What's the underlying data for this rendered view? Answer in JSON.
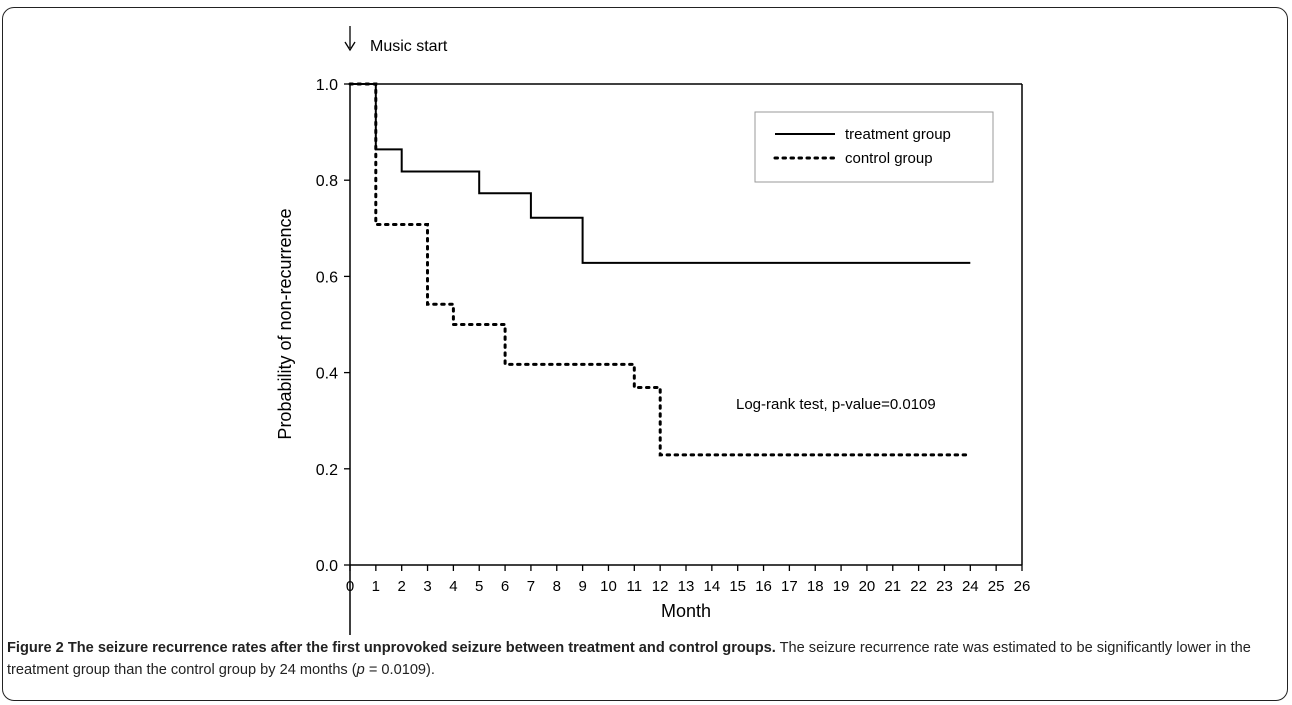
{
  "chart_data": {
    "type": "line",
    "step": true,
    "xlabel": "Month",
    "ylabel": "Probability of non-recurrence",
    "xlim": [
      0,
      26
    ],
    "ylim": [
      0,
      1.0
    ],
    "xticks": [
      "0",
      "1",
      "2",
      "3",
      "4",
      "5",
      "6",
      "7",
      "8",
      "9",
      "10",
      "11",
      "12",
      "13",
      "14",
      "15",
      "16",
      "17",
      "18",
      "19",
      "20",
      "21",
      "22",
      "23",
      "24",
      "25",
      "26"
    ],
    "yticks": [
      "0.0",
      "0.2",
      "0.4",
      "0.6",
      "0.8",
      "1.0"
    ],
    "grid": false,
    "legend_position": "top-right",
    "series": [
      {
        "name": "treatment group",
        "style": "solid",
        "points": [
          [
            0,
            1.0
          ],
          [
            1,
            1.0
          ],
          [
            1,
            0.864
          ],
          [
            2,
            0.864
          ],
          [
            2,
            0.818
          ],
          [
            5,
            0.818
          ],
          [
            5,
            0.773
          ],
          [
            7,
            0.773
          ],
          [
            7,
            0.722
          ],
          [
            9,
            0.722
          ],
          [
            9,
            0.628
          ],
          [
            24,
            0.628
          ]
        ]
      },
      {
        "name": "control group",
        "style": "dotted",
        "points": [
          [
            0,
            1.0
          ],
          [
            1,
            1.0
          ],
          [
            1,
            0.708
          ],
          [
            3,
            0.708
          ],
          [
            3,
            0.542
          ],
          [
            4,
            0.542
          ],
          [
            4,
            0.5
          ],
          [
            6,
            0.5
          ],
          [
            6,
            0.417
          ],
          [
            11,
            0.417
          ],
          [
            11,
            0.369
          ],
          [
            12,
            0.369
          ],
          [
            12,
            0.229
          ],
          [
            24,
            0.229
          ]
        ]
      }
    ],
    "annotations": [
      {
        "text": "Music start",
        "x": 1
      },
      {
        "text": "Log-rank test, p-value=0.0109"
      }
    ]
  },
  "caption": {
    "lead": "Figure 2 The seizure recurrence rates after the first unprovoked seizure between treatment and control groups.",
    "body_before": " The seizure recurrence rate was estimated to be significantly lower in the treatment group than the control group by 24 months (",
    "p_symbol": "p",
    "body_after": " = 0.0109)."
  }
}
